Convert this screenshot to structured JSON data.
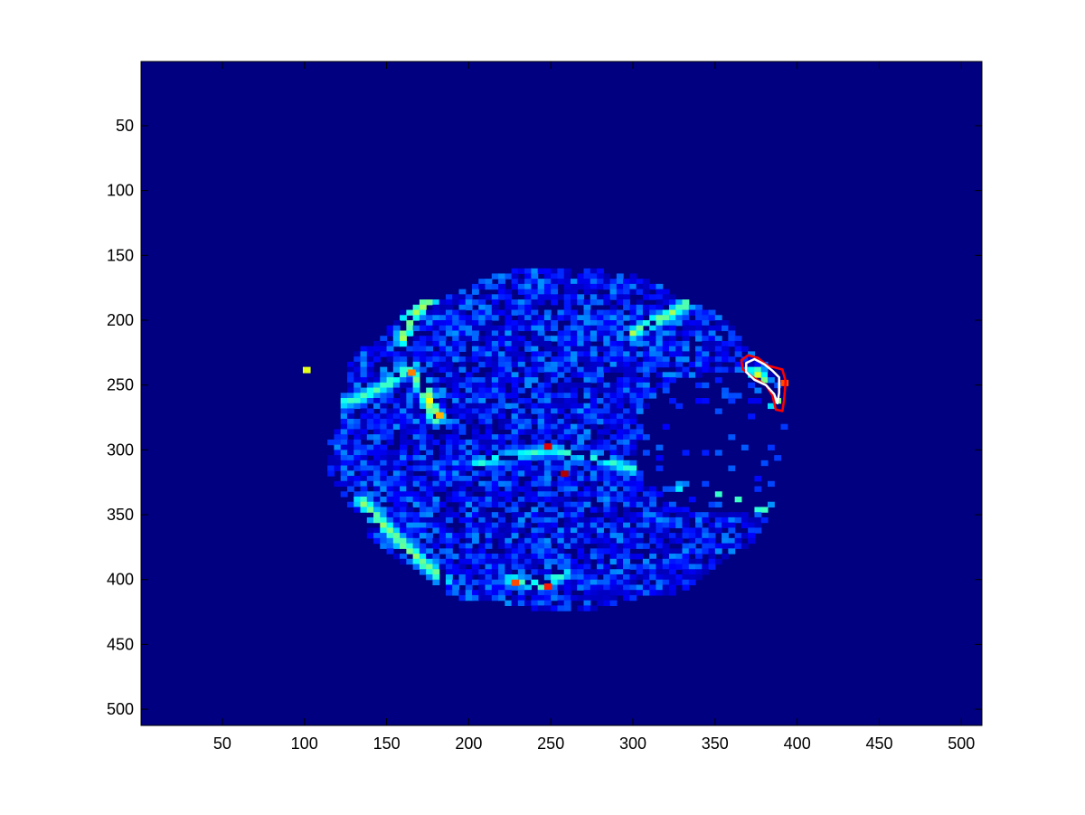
{
  "chart_data": {
    "type": "heatmap",
    "title": "",
    "xlabel": "",
    "ylabel": "",
    "colormap": "jet",
    "background_color": "#000080",
    "image_size": [
      512,
      512
    ],
    "xlim": [
      0.5,
      512.5
    ],
    "ylim": [
      0.5,
      512.5
    ],
    "y_reversed": true,
    "grid": false,
    "legend": "none",
    "x_ticks": [
      50,
      100,
      150,
      200,
      250,
      300,
      350,
      400,
      450,
      500
    ],
    "y_ticks": [
      50,
      100,
      150,
      200,
      250,
      300,
      350,
      400,
      450,
      500
    ],
    "x_tick_labels": [
      "50",
      "100",
      "150",
      "200",
      "250",
      "300",
      "350",
      "400",
      "450",
      "500"
    ],
    "y_tick_labels": [
      "50",
      "100",
      "150",
      "200",
      "250",
      "300",
      "350",
      "400",
      "450",
      "500"
    ],
    "region_outline_data": {
      "center": [
        256,
        292
      ],
      "radii": [
        140,
        132
      ],
      "inner_hole_center": [
        355,
        295
      ],
      "inner_hole_radius": [
        55,
        55
      ]
    },
    "bright_streaks": [
      {
        "points": [
          [
            165,
            235
          ],
          [
            150,
            250
          ],
          [
            130,
            262
          ],
          [
            115,
            266
          ]
        ],
        "level": 0.45
      },
      {
        "points": [
          [
            185,
            175
          ],
          [
            175,
            185
          ],
          [
            163,
            200
          ],
          [
            160,
            215
          ]
        ],
        "level": 0.55
      },
      {
        "points": [
          [
            300,
            210
          ],
          [
            315,
            200
          ],
          [
            330,
            190
          ],
          [
            340,
            180
          ]
        ],
        "level": 0.5
      },
      {
        "points": [
          [
            170,
            245
          ],
          [
            175,
            260
          ],
          [
            180,
            275
          ]
        ],
        "level": 0.6
      },
      {
        "points": [
          [
            135,
            340
          ],
          [
            150,
            360
          ],
          [
            170,
            385
          ],
          [
            185,
            400
          ]
        ],
        "level": 0.5
      },
      {
        "points": [
          [
            205,
            310
          ],
          [
            225,
            305
          ],
          [
            250,
            300
          ],
          [
            275,
            305
          ],
          [
            300,
            315
          ]
        ],
        "level": 0.4
      },
      {
        "points": [
          [
            330,
            330
          ],
          [
            350,
            335
          ],
          [
            370,
            340
          ],
          [
            385,
            350
          ]
        ],
        "level": 0.45
      },
      {
        "points": [
          [
            375,
            240
          ],
          [
            383,
            255
          ],
          [
            390,
            270
          ]
        ],
        "level": 0.55
      },
      {
        "points": [
          [
            225,
            400
          ],
          [
            245,
            405
          ],
          [
            258,
            395
          ]
        ],
        "level": 0.45
      }
    ],
    "hot_spots": [
      {
        "x": 248,
        "y": 297,
        "level": 0.9
      },
      {
        "x": 258,
        "y": 318,
        "level": 0.95
      },
      {
        "x": 165,
        "y": 240,
        "level": 0.75
      },
      {
        "x": 182,
        "y": 273,
        "level": 0.7
      },
      {
        "x": 248,
        "y": 405,
        "level": 0.85
      },
      {
        "x": 228,
        "y": 402,
        "level": 0.8
      },
      {
        "x": 392,
        "y": 248,
        "level": 0.8
      },
      {
        "x": 101,
        "y": 238,
        "level": 0.6
      }
    ],
    "annotations": [
      {
        "name": "red-contour",
        "color": "#ff0000",
        "points": [
          [
            366,
            231
          ],
          [
            370,
            227
          ],
          [
            376,
            229
          ],
          [
            382,
            235
          ],
          [
            391,
            238
          ],
          [
            393,
            247
          ],
          [
            392,
            262
          ],
          [
            391,
            270
          ],
          [
            387,
            269
          ],
          [
            385,
            258
          ],
          [
            381,
            250
          ],
          [
            373,
            244
          ],
          [
            367,
            238
          ]
        ]
      },
      {
        "name": "white-contour",
        "color": "#ffffff",
        "points": [
          [
            369,
            233
          ],
          [
            374,
            230
          ],
          [
            380,
            234
          ],
          [
            385,
            239
          ],
          [
            389,
            244
          ],
          [
            389,
            256
          ],
          [
            388,
            264
          ],
          [
            386,
            257
          ],
          [
            381,
            250
          ],
          [
            374,
            246
          ],
          [
            369,
            240
          ]
        ]
      }
    ]
  }
}
